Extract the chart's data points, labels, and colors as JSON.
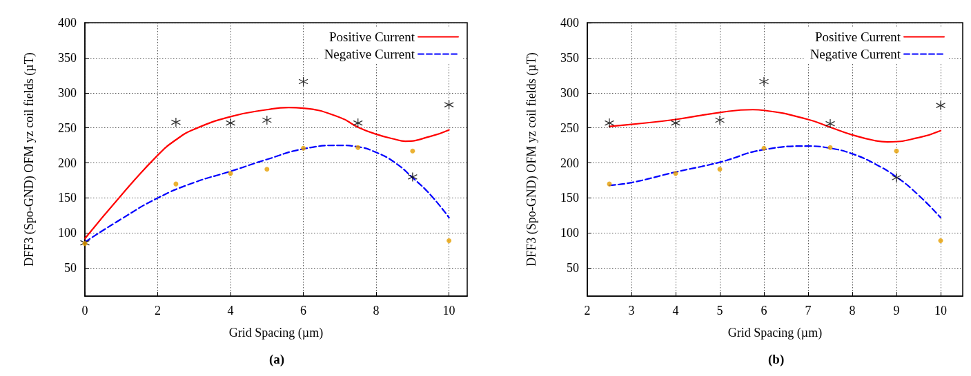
{
  "chart_data": [
    {
      "type": "line",
      "xlabel": "Grid Spacing (µm)",
      "ylabel": "DFF3 (Spo-GND) OFM yz coil fields (µT)",
      "annotations": [
        "(a)"
      ],
      "xlim": [
        0,
        10.5
      ],
      "xticks": [
        0,
        2,
        4,
        6,
        8,
        10
      ],
      "ylim": [
        10,
        400
      ],
      "yticks": [
        50,
        100,
        150,
        200,
        250,
        300,
        350,
        400
      ],
      "grid": true,
      "legend": "top right",
      "series": [
        {
          "name": "Positive Current",
          "color": "#ff0000",
          "line_style": "solid",
          "marker": "none",
          "x": [
            0,
            1,
            2,
            2.5,
            3,
            4,
            5,
            5.6,
            6,
            7,
            7.5,
            8,
            8.5,
            8.8,
            9.5,
            10
          ],
          "values": [
            92,
            154,
            211,
            233,
            248,
            266,
            276,
            279,
            278,
            265,
            251,
            241,
            234,
            231,
            238,
            247
          ]
        },
        {
          "name": "Negative Current",
          "color": "#0000ff",
          "line_style": "dashed",
          "marker": "none",
          "x": [
            0,
            1,
            2,
            3,
            4,
            5,
            6,
            7,
            7.5,
            8,
            8.5,
            9,
            9.5,
            10
          ],
          "values": [
            87,
            120,
            150,
            172,
            188,
            205,
            220,
            225,
            223,
            215,
            201,
            179,
            154,
            122
          ]
        },
        {
          "type": "scatter",
          "color": "#000000",
          "marker": "cross",
          "x": [
            0,
            2.5,
            4,
            5,
            6,
            7.5,
            9,
            10
          ],
          "values": [
            86,
            258,
            257,
            261,
            316,
            257,
            180,
            283
          ]
        },
        {
          "type": "scatter",
          "color": "#e69f00",
          "marker": "circle",
          "x": [
            0,
            2.5,
            4,
            5,
            6,
            7.5,
            9,
            10
          ],
          "values": [
            85,
            170,
            185,
            191,
            221,
            222,
            217,
            89
          ]
        }
      ]
    },
    {
      "type": "line",
      "xlabel": "Grid Spacing (µm)",
      "ylabel": "DFF3 (Spo-GND) OFM yz coil fields (µT)",
      "annotations": [
        "(b)"
      ],
      "xlim": [
        2,
        10.5
      ],
      "xticks": [
        2,
        3,
        4,
        5,
        6,
        7,
        8,
        9,
        10
      ],
      "ylim": [
        10,
        400
      ],
      "yticks": [
        50,
        100,
        150,
        200,
        250,
        300,
        350,
        400
      ],
      "grid": true,
      "legend": "top right",
      "series": [
        {
          "name": "Positive Current",
          "color": "#ff0000",
          "line_style": "solid",
          "marker": "none",
          "x": [
            2.5,
            3,
            4,
            5,
            5.75,
            6,
            7,
            7.5,
            8,
            8.5,
            8.8,
            9.5,
            10
          ],
          "values": [
            252,
            255,
            262,
            272,
            276,
            275,
            262,
            251,
            240,
            232,
            230,
            236,
            246
          ]
        },
        {
          "name": "Negative Current",
          "color": "#0000ff",
          "line_style": "dashed",
          "marker": "none",
          "x": [
            2.5,
            3,
            4,
            5,
            6,
            7,
            7.5,
            8,
            8.5,
            9,
            9.5,
            10
          ],
          "values": [
            168,
            172,
            187,
            201,
            219,
            224,
            221,
            213,
            199,
            180,
            154,
            122
          ]
        },
        {
          "type": "scatter",
          "color": "#000000",
          "marker": "cross",
          "x": [
            2.5,
            4,
            5,
            6,
            7.5,
            9,
            10
          ],
          "values": [
            257,
            257,
            261,
            316,
            256,
            179,
            282
          ]
        },
        {
          "type": "scatter",
          "color": "#e69f00",
          "marker": "circle",
          "x": [
            2.5,
            4,
            5,
            6,
            7.5,
            9,
            10
          ],
          "values": [
            170,
            185,
            191,
            221,
            222,
            217,
            89
          ]
        }
      ]
    }
  ]
}
